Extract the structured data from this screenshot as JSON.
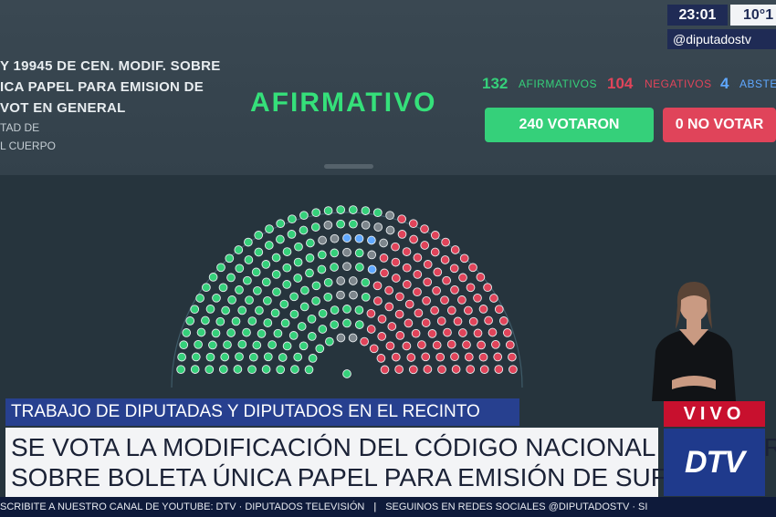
{
  "bill": {
    "line1": "Y 19945 DE CEN. MODIF. SOBRE",
    "line2": "ICA PAPEL PARA EMISION DE",
    "line3": "VOT EN GENERAL",
    "line4": "TAD DE",
    "line5": "L CUERPO"
  },
  "result_label": "AFIRMATIVO",
  "counts": {
    "afirmativos_value": "132",
    "afirmativos_label": "AFIRMATIVOS",
    "negativos_value": "104",
    "negativos_label": "NEGATIVOS",
    "abstenciones_value": "4",
    "abstenciones_label": "ABSTE"
  },
  "buttons": {
    "votaron_label": "240 VOTARON",
    "no_votaron_label": "0 NO VOTAR"
  },
  "overlay": {
    "clock": "23:01",
    "temperature": "10°1",
    "handle": "@diputadostv"
  },
  "chamber": {
    "total_seats": 257,
    "rows": 10,
    "afirmativos": 132,
    "negativos": 104,
    "abstenciones": 4,
    "ausentes": 17
  },
  "colors": {
    "afirmativo": "#35d07a",
    "negativo": "#e0445a",
    "abstencion": "#5fa8ff",
    "ausente": "#7d868c",
    "accent_blue": "#1f3a8c",
    "live_red": "#c8102e"
  },
  "lower_third": {
    "context": "TRABAJO DE DIPUTADAS Y DIPUTADOS EN EL RECINTO",
    "headline_line1": "SE VOTA LA MODIFICACIÓN DEL CÓDIGO NACIONAL ELECTORAL",
    "headline_line2": "SOBRE BOLETA ÚNICA PAPEL PARA EMISIÓN DE SUFRAGIO",
    "live_label": "VIVO",
    "channel_logo": "DTV"
  },
  "ticker": {
    "left": "SCRIBITE A NUESTRO CANAL DE YOUTUBE: DTV · DIPUTADOS TELEVISIÓN",
    "separator": "|",
    "right": "SEGUINOS EN REDES SOCIALES @DIPUTADOSTV · SI"
  }
}
